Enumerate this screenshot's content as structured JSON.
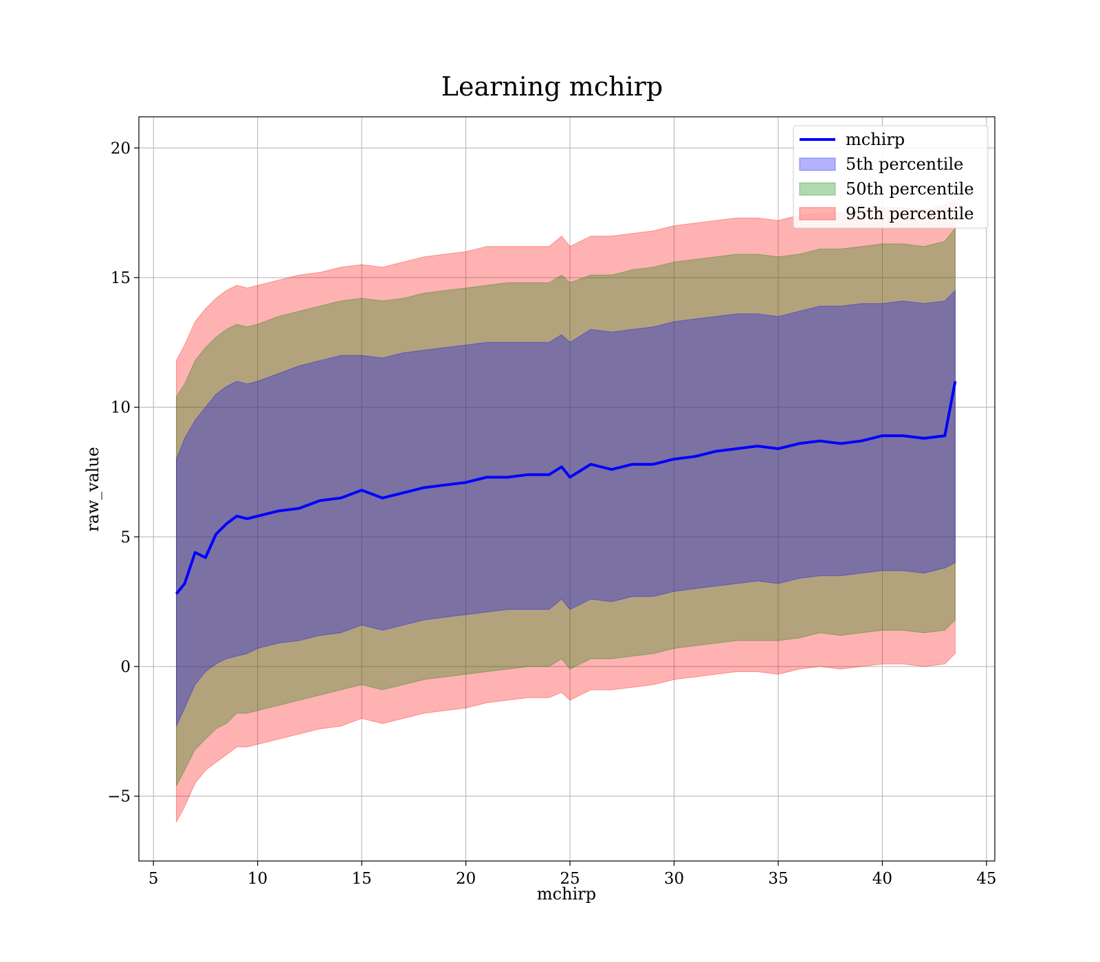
{
  "chart_data": {
    "type": "area",
    "title": "Learning mchirp",
    "xlabel": "mchirp",
    "ylabel": "raw_value",
    "xlim": [
      4.3,
      45.4
    ],
    "ylim": [
      -7.5,
      21.2
    ],
    "xticks": [
      5,
      10,
      15,
      20,
      25,
      30,
      35,
      40,
      45
    ],
    "yticks": [
      -5,
      0,
      5,
      10,
      15,
      20
    ],
    "ytick_labels": [
      "−5",
      "0",
      "5",
      "10",
      "15",
      "20"
    ],
    "grid": true,
    "legend_position": "upper-right",
    "legend": [
      {
        "label": "mchirp",
        "kind": "line",
        "color": "#0000ff"
      },
      {
        "label": "5th percentile",
        "kind": "patch",
        "color": "#0000ff"
      },
      {
        "label": "50th percentile",
        "kind": "patch",
        "color": "#008000"
      },
      {
        "label": "95th percentile",
        "kind": "patch",
        "color": "#ff0000"
      }
    ],
    "x": [
      6.1,
      6.5,
      7.0,
      7.5,
      8.0,
      8.5,
      9.0,
      9.5,
      10,
      11,
      12,
      13,
      14,
      15,
      16,
      17,
      18,
      19,
      20,
      21,
      22,
      23,
      24,
      24.6,
      25,
      26,
      27,
      28,
      29,
      30,
      31,
      32,
      33,
      34,
      35,
      36,
      37,
      38,
      39,
      40,
      41,
      42,
      43,
      43.5
    ],
    "series": [
      {
        "name": "mchirp",
        "kind": "line",
        "color": "#0000ff",
        "values": [
          2.8,
          3.2,
          4.4,
          4.2,
          5.1,
          5.5,
          5.8,
          5.7,
          5.8,
          6.0,
          6.1,
          6.4,
          6.5,
          6.8,
          6.5,
          6.7,
          6.9,
          7.0,
          7.1,
          7.3,
          7.3,
          7.4,
          7.4,
          7.7,
          7.3,
          7.8,
          7.6,
          7.8,
          7.8,
          8.0,
          8.1,
          8.3,
          8.4,
          8.5,
          8.4,
          8.6,
          8.7,
          8.6,
          8.7,
          8.9,
          8.9,
          8.8,
          8.9,
          11.0
        ]
      },
      {
        "name": "5th percentile",
        "kind": "band",
        "color": "#0000ff",
        "upper": [
          8.0,
          8.8,
          9.5,
          10.0,
          10.5,
          10.8,
          11.0,
          10.9,
          11.0,
          11.3,
          11.6,
          11.8,
          12.0,
          12.0,
          11.9,
          12.1,
          12.2,
          12.3,
          12.4,
          12.5,
          12.5,
          12.5,
          12.5,
          12.8,
          12.5,
          13.0,
          12.9,
          13.0,
          13.1,
          13.3,
          13.4,
          13.5,
          13.6,
          13.6,
          13.5,
          13.7,
          13.9,
          13.9,
          14.0,
          14.0,
          14.1,
          14.0,
          14.1,
          14.5
        ],
        "lower": [
          -2.3,
          -1.6,
          -0.7,
          -0.2,
          0.1,
          0.3,
          0.4,
          0.5,
          0.7,
          0.9,
          1.0,
          1.2,
          1.3,
          1.6,
          1.4,
          1.6,
          1.8,
          1.9,
          2.0,
          2.1,
          2.2,
          2.2,
          2.2,
          2.6,
          2.2,
          2.6,
          2.5,
          2.7,
          2.7,
          2.9,
          3.0,
          3.1,
          3.2,
          3.3,
          3.2,
          3.4,
          3.5,
          3.5,
          3.6,
          3.7,
          3.7,
          3.6,
          3.8,
          4.0
        ]
      },
      {
        "name": "50th percentile",
        "kind": "band",
        "color": "#008000",
        "upper": [
          10.4,
          10.9,
          11.8,
          12.3,
          12.7,
          13.0,
          13.2,
          13.1,
          13.2,
          13.5,
          13.7,
          13.9,
          14.1,
          14.2,
          14.1,
          14.2,
          14.4,
          14.5,
          14.6,
          14.7,
          14.8,
          14.8,
          14.8,
          15.1,
          14.8,
          15.1,
          15.1,
          15.3,
          15.4,
          15.6,
          15.7,
          15.8,
          15.9,
          15.9,
          15.8,
          15.9,
          16.1,
          16.1,
          16.2,
          16.3,
          16.3,
          16.2,
          16.4,
          16.9
        ],
        "lower": [
          -4.6,
          -4.0,
          -3.2,
          -2.8,
          -2.4,
          -2.2,
          -1.8,
          -1.8,
          -1.7,
          -1.5,
          -1.3,
          -1.1,
          -0.9,
          -0.7,
          -0.9,
          -0.7,
          -0.5,
          -0.4,
          -0.3,
          -0.2,
          -0.1,
          0.0,
          0.0,
          0.3,
          -0.1,
          0.3,
          0.3,
          0.4,
          0.5,
          0.7,
          0.8,
          0.9,
          1.0,
          1.0,
          1.0,
          1.1,
          1.3,
          1.2,
          1.3,
          1.4,
          1.4,
          1.3,
          1.4,
          1.8
        ]
      },
      {
        "name": "95th percentile",
        "kind": "band",
        "color": "#ff0000",
        "upper": [
          11.8,
          12.4,
          13.3,
          13.8,
          14.2,
          14.5,
          14.7,
          14.6,
          14.7,
          14.9,
          15.1,
          15.2,
          15.4,
          15.5,
          15.4,
          15.6,
          15.8,
          15.9,
          16.0,
          16.2,
          16.2,
          16.2,
          16.2,
          16.6,
          16.2,
          16.6,
          16.6,
          16.7,
          16.8,
          17.0,
          17.1,
          17.2,
          17.3,
          17.3,
          17.2,
          17.4,
          17.5,
          17.5,
          17.6,
          17.7,
          17.7,
          17.6,
          17.8,
          18.0
        ],
        "lower": [
          -6.0,
          -5.4,
          -4.5,
          -4.0,
          -3.7,
          -3.4,
          -3.1,
          -3.1,
          -3.0,
          -2.8,
          -2.6,
          -2.4,
          -2.3,
          -2.0,
          -2.2,
          -2.0,
          -1.8,
          -1.7,
          -1.6,
          -1.4,
          -1.3,
          -1.2,
          -1.2,
          -1.0,
          -1.3,
          -0.9,
          -0.9,
          -0.8,
          -0.7,
          -0.5,
          -0.4,
          -0.3,
          -0.2,
          -0.2,
          -0.3,
          -0.1,
          0.0,
          -0.1,
          0.0,
          0.1,
          0.1,
          0.0,
          0.1,
          0.5
        ]
      }
    ]
  }
}
